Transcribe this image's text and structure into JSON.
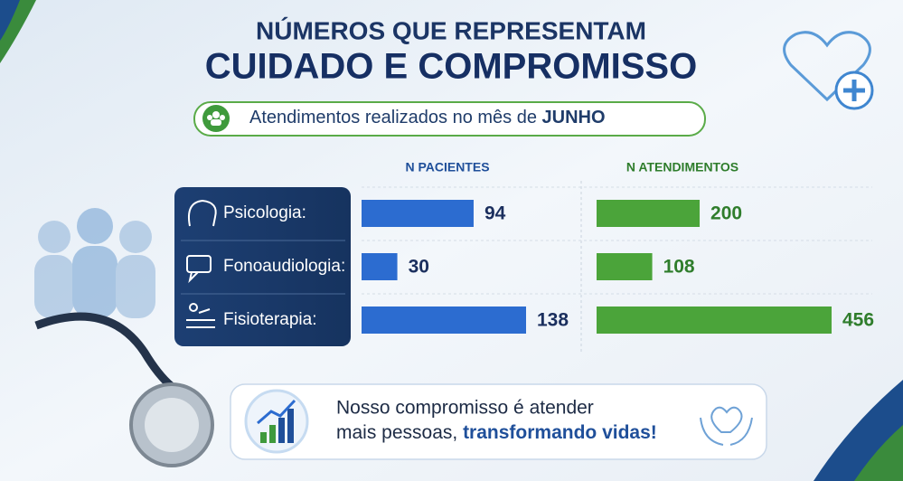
{
  "header": {
    "line1": "NÚMEROS QUE REPRESENTAM",
    "line2": "CUIDADO E COMPROMISSO",
    "subtitle": "Atendimentos realizados no mês de ",
    "subtitle_month": "JUNHO"
  },
  "chart_data": {
    "type": "bar",
    "orientation": "horizontal",
    "categories": [
      "Psicologia:",
      "Fonoaudiologia:",
      "Fisioterapia:"
    ],
    "series": [
      {
        "name": "N PACIENTES",
        "color": "#2c6cd0",
        "values": [
          94,
          30,
          138
        ]
      },
      {
        "name": "N ATENDIMENTOS",
        "color": "#4ba43a",
        "values": [
          200,
          108,
          456
        ]
      }
    ]
  },
  "footer": {
    "line1": "Nosso compromisso é atender",
    "line2": "mais pessoas, ",
    "line2_emphasis": "transformando vidas!"
  }
}
